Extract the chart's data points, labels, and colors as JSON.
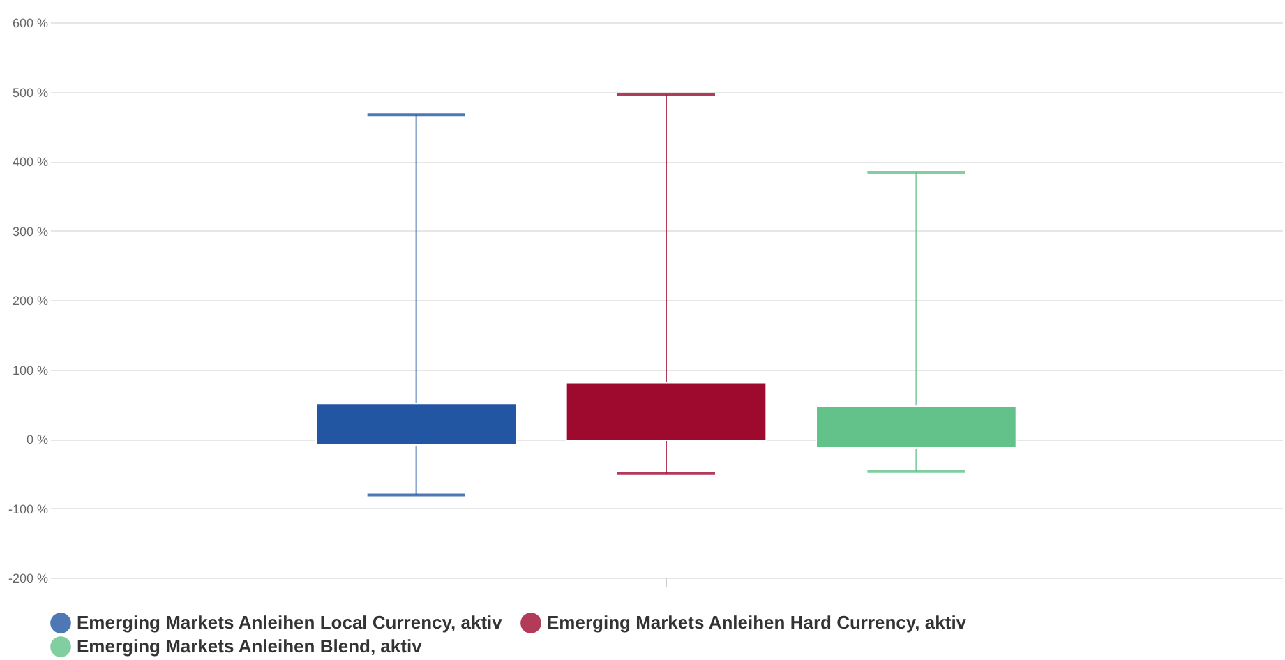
{
  "chart_data": {
    "type": "box",
    "categories": [
      null
    ],
    "series": [
      {
        "name": "Emerging Markets Anleihen Local Currency, aktiv",
        "color": "#2256a3",
        "boxes": [
          {
            "low": -81,
            "q1": -9,
            "q3": 51,
            "high": 467
          }
        ]
      },
      {
        "name": "Emerging Markets Anleihen Hard Currency, aktiv",
        "color": "#9e0a2e",
        "boxes": [
          {
            "low": -50,
            "q1": -2,
            "q3": 81,
            "high": 496
          }
        ]
      },
      {
        "name": "Emerging Markets Anleihen Blend, aktiv",
        "color": "#62c28a",
        "boxes": [
          {
            "low": -47,
            "q1": -13,
            "q3": 47,
            "high": 384
          }
        ]
      }
    ],
    "ylim": [
      -200,
      600
    ],
    "yticks": [
      {
        "value": -200,
        "label": "-200 %"
      },
      {
        "value": -100,
        "label": "-100 %"
      },
      {
        "value": 0,
        "label": "0 %"
      },
      {
        "value": 100,
        "label": "100 %"
      },
      {
        "value": 200,
        "label": "200 %"
      },
      {
        "value": 300,
        "label": "300 %"
      },
      {
        "value": 400,
        "label": "400 %"
      },
      {
        "value": 500,
        "label": "500 %"
      },
      {
        "value": 600,
        "label": "600 %"
      }
    ],
    "grid": "y",
    "legend": "bottom",
    "tick_labels": "y"
  }
}
